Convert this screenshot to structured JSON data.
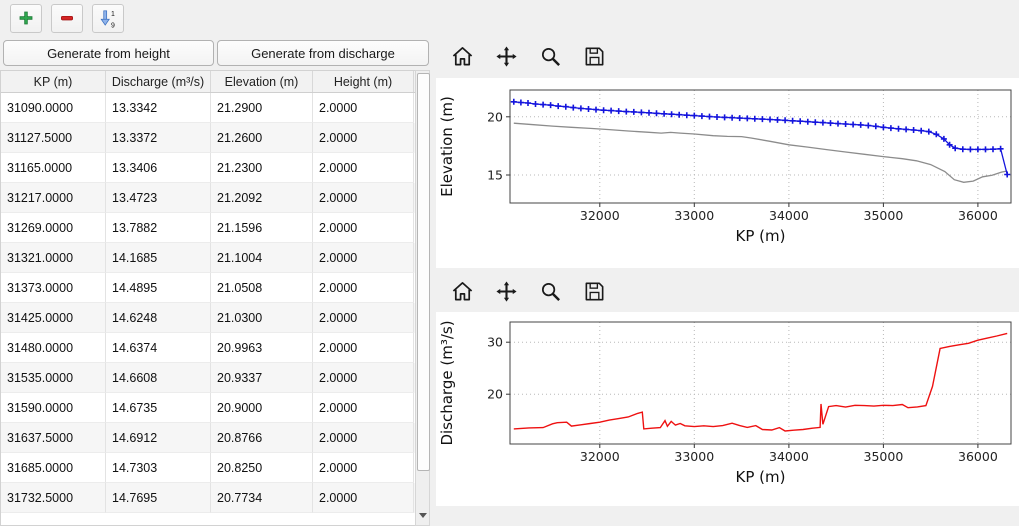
{
  "top_toolbar": {
    "icons": [
      {
        "name": "add-row-icon"
      },
      {
        "name": "remove-row-icon"
      },
      {
        "name": "sort-ascending-icon",
        "top_digit": "1",
        "bottom_digit": "9"
      }
    ]
  },
  "left_panel": {
    "buttons": [
      {
        "label": "Generate from height"
      },
      {
        "label": "Generate from discharge"
      }
    ],
    "table": {
      "columns": [
        "KP (m)",
        "Discharge (m³/s)",
        "Elevation (m)",
        "Height (m)"
      ],
      "rows": [
        [
          "31090.0000",
          "13.3342",
          "21.2900",
          "2.0000"
        ],
        [
          "31127.5000",
          "13.3372",
          "21.2600",
          "2.0000"
        ],
        [
          "31165.0000",
          "13.3406",
          "21.2300",
          "2.0000"
        ],
        [
          "31217.0000",
          "13.4723",
          "21.2092",
          "2.0000"
        ],
        [
          "31269.0000",
          "13.7882",
          "21.1596",
          "2.0000"
        ],
        [
          "31321.0000",
          "14.1685",
          "21.1004",
          "2.0000"
        ],
        [
          "31373.0000",
          "14.4895",
          "21.0508",
          "2.0000"
        ],
        [
          "31425.0000",
          "14.6248",
          "21.0300",
          "2.0000"
        ],
        [
          "31480.0000",
          "14.6374",
          "20.9963",
          "2.0000"
        ],
        [
          "31535.0000",
          "14.6608",
          "20.9337",
          "2.0000"
        ],
        [
          "31590.0000",
          "14.6735",
          "20.9000",
          "2.0000"
        ],
        [
          "31637.5000",
          "14.6912",
          "20.8766",
          "2.0000"
        ],
        [
          "31685.0000",
          "14.7303",
          "20.8250",
          "2.0000"
        ],
        [
          "31732.5000",
          "14.7695",
          "20.7734",
          "2.0000"
        ]
      ]
    }
  },
  "figure_toolbar": {
    "icons": [
      {
        "name": "home-icon"
      },
      {
        "name": "pan-icon"
      },
      {
        "name": "zoom-icon"
      },
      {
        "name": "save-icon"
      }
    ]
  },
  "chart_data": [
    {
      "id": "elevation",
      "type": "line",
      "title": "",
      "xlabel": "KP (m)",
      "ylabel": "Elevation (m)",
      "xlim": [
        31050,
        36350
      ],
      "ylim": [
        12.6,
        22.3
      ],
      "xticks": [
        32000,
        33000,
        34000,
        35000,
        36000
      ],
      "yticks": [
        15,
        20
      ],
      "grid": "dotted",
      "series": [
        {
          "name": "ground-profile",
          "color": "#8c8c8c",
          "marker": "none",
          "line_width": 1.3,
          "points": [
            [
              31090,
              19.45
            ],
            [
              31300,
              19.32
            ],
            [
              31500,
              19.2
            ],
            [
              31700,
              19.1
            ],
            [
              31900,
              19.0
            ],
            [
              32100,
              18.9
            ],
            [
              32300,
              18.78
            ],
            [
              32500,
              18.68
            ],
            [
              32650,
              18.6
            ],
            [
              32750,
              18.66
            ],
            [
              32850,
              18.6
            ],
            [
              33000,
              18.52
            ],
            [
              33200,
              18.38
            ],
            [
              33350,
              18.32
            ],
            [
              33500,
              18.3
            ],
            [
              33600,
              18.18
            ],
            [
              33800,
              17.9
            ],
            [
              34000,
              17.6
            ],
            [
              34200,
              17.4
            ],
            [
              34400,
              17.18
            ],
            [
              34600,
              16.98
            ],
            [
              34800,
              16.78
            ],
            [
              35000,
              16.58
            ],
            [
              35200,
              16.4
            ],
            [
              35350,
              16.22
            ],
            [
              35500,
              15.9
            ],
            [
              35650,
              15.3
            ],
            [
              35750,
              14.6
            ],
            [
              35850,
              14.38
            ],
            [
              35950,
              14.48
            ],
            [
              36050,
              14.85
            ],
            [
              36150,
              14.98
            ],
            [
              36250,
              15.25
            ],
            [
              36310,
              15.35
            ]
          ]
        },
        {
          "name": "crest-elevation",
          "color": "#1414dd",
          "marker": "plus",
          "line_width": 1.3,
          "points": [
            [
              31090,
              21.29
            ],
            [
              31165,
              21.23
            ],
            [
              31240,
              21.18
            ],
            [
              31320,
              21.1
            ],
            [
              31400,
              21.05
            ],
            [
              31480,
              21.0
            ],
            [
              31560,
              20.92
            ],
            [
              31640,
              20.87
            ],
            [
              31720,
              20.79
            ],
            [
              31800,
              20.72
            ],
            [
              31880,
              20.67
            ],
            [
              31960,
              20.62
            ],
            [
              32040,
              20.57
            ],
            [
              32120,
              20.53
            ],
            [
              32200,
              20.49
            ],
            [
              32280,
              20.45
            ],
            [
              32360,
              20.42
            ],
            [
              32440,
              20.38
            ],
            [
              32520,
              20.34
            ],
            [
              32600,
              20.3
            ],
            [
              32680,
              20.26
            ],
            [
              32760,
              20.22
            ],
            [
              32840,
              20.18
            ],
            [
              32920,
              20.14
            ],
            [
              33000,
              20.1
            ],
            [
              33080,
              20.06
            ],
            [
              33160,
              20.02
            ],
            [
              33240,
              19.98
            ],
            [
              33320,
              19.95
            ],
            [
              33400,
              19.92
            ],
            [
              33480,
              19.89
            ],
            [
              33560,
              19.86
            ],
            [
              33640,
              19.83
            ],
            [
              33720,
              19.8
            ],
            [
              33800,
              19.77
            ],
            [
              33880,
              19.73
            ],
            [
              33960,
              19.7
            ],
            [
              34040,
              19.66
            ],
            [
              34120,
              19.62
            ],
            [
              34200,
              19.58
            ],
            [
              34280,
              19.54
            ],
            [
              34360,
              19.5
            ],
            [
              34440,
              19.46
            ],
            [
              34520,
              19.42
            ],
            [
              34600,
              19.38
            ],
            [
              34680,
              19.34
            ],
            [
              34760,
              19.3
            ],
            [
              34840,
              19.25
            ],
            [
              34920,
              19.18
            ],
            [
              35000,
              19.1
            ],
            [
              35080,
              19.03
            ],
            [
              35160,
              18.97
            ],
            [
              35240,
              18.92
            ],
            [
              35320,
              18.87
            ],
            [
              35400,
              18.81
            ],
            [
              35480,
              18.73
            ],
            [
              35560,
              18.5
            ],
            [
              35640,
              18.1
            ],
            [
              35700,
              17.6
            ],
            [
              35760,
              17.3
            ],
            [
              35840,
              17.22
            ],
            [
              35920,
              17.2
            ],
            [
              36000,
              17.2
            ],
            [
              36080,
              17.2
            ],
            [
              36160,
              17.22
            ],
            [
              36240,
              17.25
            ],
            [
              36310,
              15.05
            ]
          ]
        }
      ]
    },
    {
      "id": "discharge",
      "type": "line",
      "title": "",
      "xlabel": "KP (m)",
      "ylabel": "Discharge (m³/s)",
      "xlim": [
        31050,
        36350
      ],
      "ylim": [
        10.4,
        33.9
      ],
      "xticks": [
        32000,
        33000,
        34000,
        35000,
        36000
      ],
      "yticks": [
        20,
        30
      ],
      "grid": "dotted",
      "series": [
        {
          "name": "discharge",
          "color": "#ee1111",
          "marker": "none",
          "line_width": 1.4,
          "points": [
            [
              31090,
              13.3
            ],
            [
              31250,
              13.5
            ],
            [
              31400,
              13.55
            ],
            [
              31500,
              14.3
            ],
            [
              31550,
              14.5
            ],
            [
              31650,
              14.6
            ],
            [
              31700,
              13.85
            ],
            [
              31800,
              14.1
            ],
            [
              31900,
              14.35
            ],
            [
              32000,
              14.6
            ],
            [
              32100,
              15.0
            ],
            [
              32200,
              15.3
            ],
            [
              32300,
              15.6
            ],
            [
              32400,
              16.3
            ],
            [
              32450,
              16.55
            ],
            [
              32465,
              13.3
            ],
            [
              32550,
              13.45
            ],
            [
              32640,
              13.55
            ],
            [
              32690,
              14.9
            ],
            [
              32715,
              13.8
            ],
            [
              32755,
              14.75
            ],
            [
              32800,
              14.05
            ],
            [
              32850,
              14.35
            ],
            [
              32900,
              13.9
            ],
            [
              33000,
              13.75
            ],
            [
              33100,
              13.9
            ],
            [
              33200,
              13.75
            ],
            [
              33300,
              13.95
            ],
            [
              33400,
              14.4
            ],
            [
              33480,
              13.95
            ],
            [
              33560,
              13.6
            ],
            [
              33650,
              13.95
            ],
            [
              33720,
              13.2
            ],
            [
              33820,
              13.1
            ],
            [
              33900,
              13.55
            ],
            [
              33960,
              12.9
            ],
            [
              34050,
              13.05
            ],
            [
              34150,
              13.2
            ],
            [
              34250,
              13.45
            ],
            [
              34330,
              13.6
            ],
            [
              34340,
              18.1
            ],
            [
              34360,
              14.2
            ],
            [
              34420,
              17.6
            ],
            [
              34500,
              17.8
            ],
            [
              34600,
              17.5
            ],
            [
              34700,
              17.85
            ],
            [
              34800,
              17.8
            ],
            [
              34900,
              17.7
            ],
            [
              35000,
              17.85
            ],
            [
              35100,
              17.8
            ],
            [
              35200,
              18.0
            ],
            [
              35260,
              17.4
            ],
            [
              35360,
              17.55
            ],
            [
              35450,
              17.8
            ],
            [
              35520,
              21.5
            ],
            [
              35600,
              28.8
            ],
            [
              35700,
              29.2
            ],
            [
              35800,
              29.5
            ],
            [
              35900,
              29.8
            ],
            [
              36000,
              30.4
            ],
            [
              36100,
              30.8
            ],
            [
              36200,
              31.2
            ],
            [
              36310,
              31.7
            ]
          ]
        }
      ]
    }
  ]
}
